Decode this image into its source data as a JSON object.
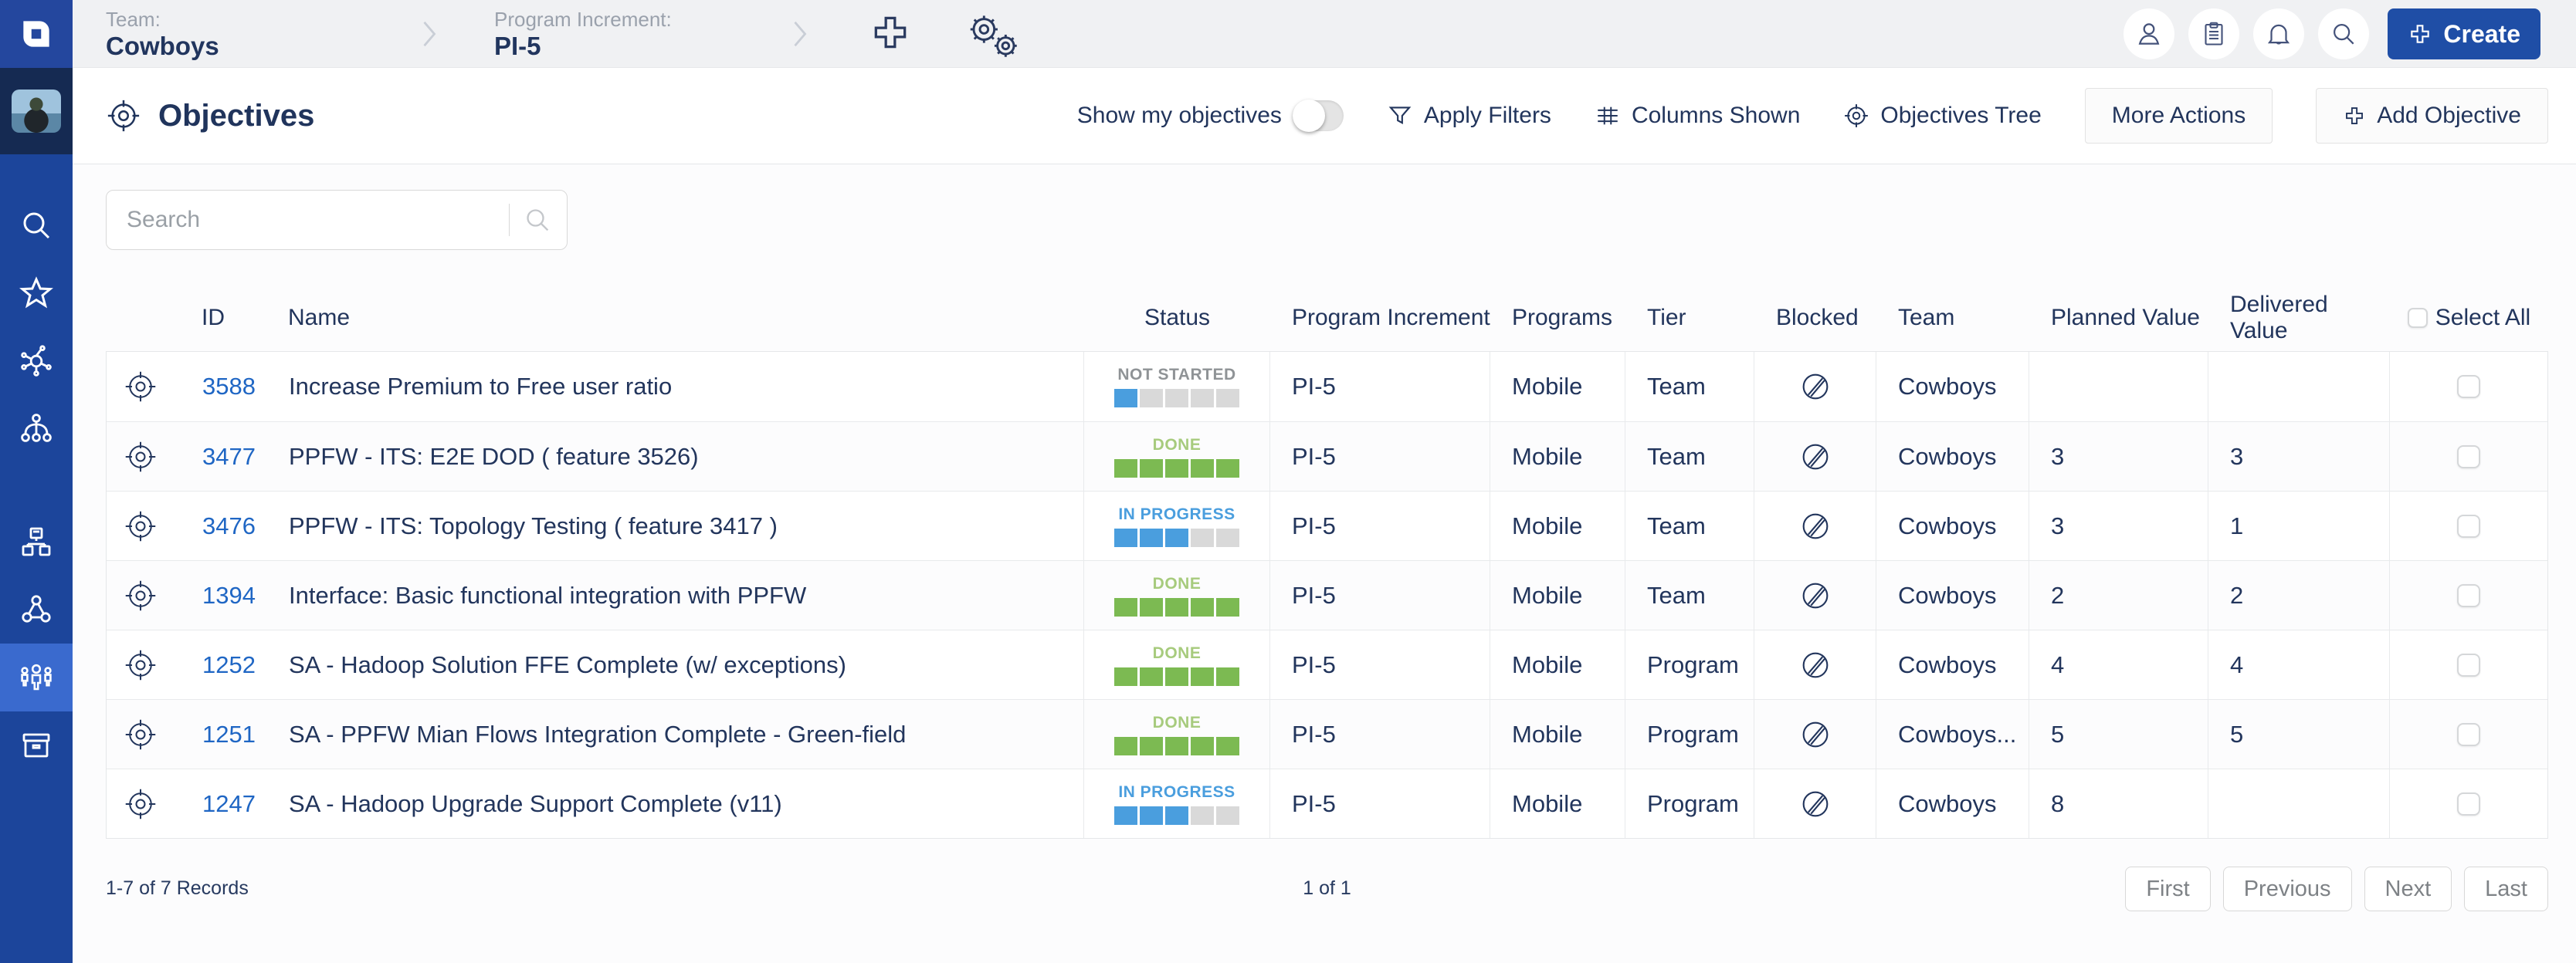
{
  "topbar": {
    "team_label": "Team:",
    "team_value": "Cowboys",
    "pi_label": "Program Increment:",
    "pi_value": "PI-5",
    "create_label": "Create"
  },
  "header": {
    "title": "Objectives",
    "show_my_objectives": "Show my objectives",
    "apply_filters": "Apply Filters",
    "columns_shown": "Columns Shown",
    "objectives_tree": "Objectives Tree",
    "more_actions": "More Actions",
    "add_objective": "Add Objective"
  },
  "search": {
    "placeholder": "Search"
  },
  "table": {
    "columns": [
      "ID",
      "Name",
      "Status",
      "Program Increment",
      "Programs",
      "Tier",
      "Blocked",
      "Team",
      "Planned Value",
      "Delivered Value",
      "Select All"
    ],
    "rows": [
      {
        "id": "3588",
        "name": "Increase Premium to Free user ratio",
        "status": "NOT STARTED",
        "pi": "PI-5",
        "programs": "Mobile",
        "tier": "Team",
        "blocked": false,
        "team": "Cowboys",
        "planned": "",
        "delivered": ""
      },
      {
        "id": "3477",
        "name": "PPFW - ITS: E2E DOD ( feature 3526)",
        "status": "DONE",
        "pi": "PI-5",
        "programs": "Mobile",
        "tier": "Team",
        "blocked": false,
        "team": "Cowboys",
        "planned": "3",
        "delivered": "3"
      },
      {
        "id": "3476",
        "name": "PPFW - ITS: Topology Testing ( feature 3417 )",
        "status": "IN PROGRESS",
        "pi": "PI-5",
        "programs": "Mobile",
        "tier": "Team",
        "blocked": false,
        "team": "Cowboys",
        "planned": "3",
        "delivered": "1"
      },
      {
        "id": "1394",
        "name": "Interface: Basic functional integration with PPFW",
        "status": "DONE",
        "pi": "PI-5",
        "programs": "Mobile",
        "tier": "Team",
        "blocked": false,
        "team": "Cowboys",
        "planned": "2",
        "delivered": "2"
      },
      {
        "id": "1252",
        "name": "SA - Hadoop Solution FFE Complete (w/ exceptions)",
        "status": "DONE",
        "pi": "PI-5",
        "programs": "Mobile",
        "tier": "Program",
        "blocked": false,
        "team": "Cowboys",
        "planned": "4",
        "delivered": "4"
      },
      {
        "id": "1251",
        "name": "SA - PPFW Mian Flows Integration Complete - Green-field",
        "status": "DONE",
        "pi": "PI-5",
        "programs": "Mobile",
        "tier": "Program",
        "blocked": false,
        "team": "Cowboys...",
        "planned": "5",
        "delivered": "5"
      },
      {
        "id": "1247",
        "name": "SA - Hadoop Upgrade Support Complete (v11)",
        "status": "IN PROGRESS",
        "pi": "PI-5",
        "programs": "Mobile",
        "tier": "Program",
        "blocked": false,
        "team": "Cowboys",
        "planned": "8",
        "delivered": ""
      }
    ]
  },
  "status_styles": {
    "NOT STARTED": {
      "label_color": "#8f9396",
      "filled": 1,
      "fill_color": "#4a9ede"
    },
    "IN PROGRESS": {
      "label_color": "#4a9ede",
      "filled": 3,
      "fill_color": "#4a9ede"
    },
    "DONE": {
      "label_color": "#a7cb7d",
      "filled": 5,
      "fill_color": "#7cba52"
    }
  },
  "segment_empty_color": "#d9d9d9",
  "segments_total": 5,
  "footer": {
    "records": "1-7 of 7 Records",
    "page": "1 of 1",
    "first": "First",
    "previous": "Previous",
    "next": "Next",
    "last": "Last"
  },
  "colors": {
    "sidebar": "#1c459b",
    "sidebar_active": "#3a6ace",
    "topbar": "#f0f1f3",
    "navy_text": "#22355c",
    "link_blue": "#1f66c4",
    "create_blue": "#1f4ea6",
    "status_blue": "#4a9ede",
    "status_green": "#7cba52"
  },
  "icons": {
    "app-logo": "jira-align-mark",
    "target": "crosshair-circle",
    "person": "user-outline",
    "clipboard": "clipboard-outline",
    "bell": "notification-bell",
    "magnifier": "search-glass",
    "funnel": "filter-funnel",
    "grid": "columns-grid",
    "plus": "thick-cross-outline",
    "gears": "double-gear",
    "blocked": "no-entry-slash-circle",
    "star": "favorite-star",
    "hub": "network-hub",
    "tree": "hierarchy-tree",
    "org": "computer-org-chart",
    "triangle": "triangle-network",
    "people": "team-people",
    "archive": "archive-box",
    "chevron": "breadcrumb-chevron"
  }
}
